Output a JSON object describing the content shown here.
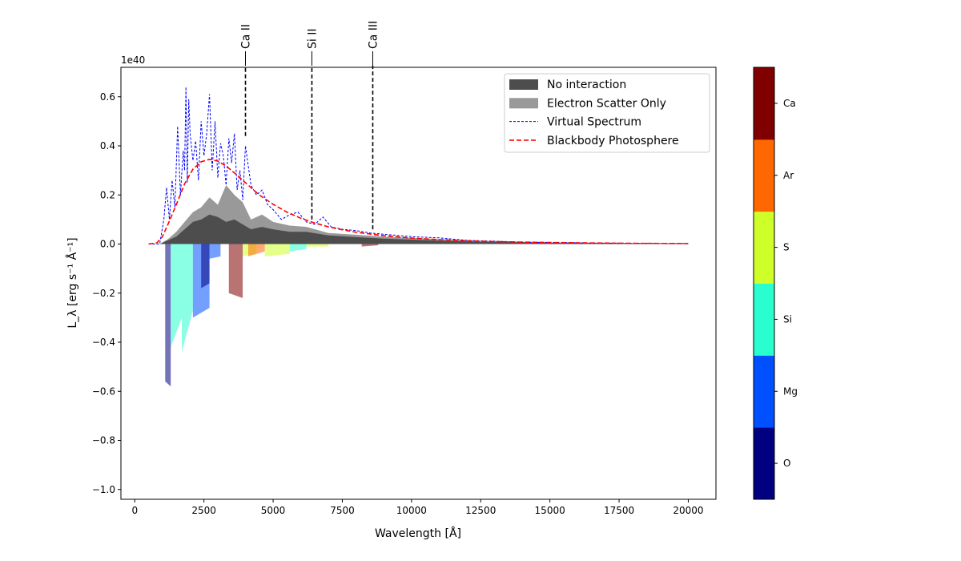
{
  "chart_data": {
    "type": "area",
    "xlabel": "Wavelength [Å]",
    "ylabel": "L_λ [erg s⁻¹ Å⁻¹]",
    "y_offset_label": "1e40",
    "xlim": [
      -500,
      21000
    ],
    "ylim": [
      -1.04,
      0.72
    ],
    "x_ticks": [
      0,
      2500,
      5000,
      7500,
      10000,
      12500,
      15000,
      17500,
      20000
    ],
    "x_tick_labels": [
      "0",
      "2500",
      "5000",
      "7500",
      "10000",
      "12500",
      "15000",
      "17500",
      "20000"
    ],
    "y_ticks": [
      -1.0,
      -0.8,
      -0.6,
      -0.4,
      -0.2,
      0.0,
      0.2,
      0.4,
      0.6
    ],
    "y_tick_labels": [
      "−1.0",
      "−0.8",
      "−0.6",
      "−0.4",
      "−0.2",
      "0.0",
      "0.2",
      "0.4",
      "0.6"
    ],
    "line_markers": [
      {
        "label": "Ca II",
        "x": 4000,
        "y_top": 0.44
      },
      {
        "label": "Si II",
        "x": 6400,
        "y_top": 0.1
      },
      {
        "label": "Ca III",
        "x": 8600,
        "y_top": 0.06
      }
    ],
    "legend": {
      "position": "upper right",
      "entries": [
        {
          "label": "No interaction",
          "style": "patch",
          "color": "#4d4d4d"
        },
        {
          "label": "Electron Scatter Only",
          "style": "patch",
          "color": "#999999"
        },
        {
          "label": "Virtual Spectrum",
          "style": "dashed-thin",
          "color": "#0000ff"
        },
        {
          "label": "Blackbody Photosphere",
          "style": "dashed-thick",
          "color": "#ff0000"
        }
      ]
    },
    "colorbar": {
      "elements": [
        "O",
        "Mg",
        "Si",
        "S",
        "Ar",
        "Ca"
      ],
      "colors": [
        "#000080",
        "#0050ff",
        "#29ffce",
        "#ceff29",
        "#ff6800",
        "#800000"
      ]
    },
    "series": [
      {
        "name": "Blackbody Photosphere",
        "x": [
          500,
          800,
          1000,
          1200,
          1500,
          1800,
          2100,
          2400,
          2700,
          3000,
          3300,
          3600,
          4000,
          4500,
          5000,
          5500,
          6000,
          6500,
          7000,
          7500,
          8000,
          9000,
          10000,
          11000,
          12000,
          13000,
          14000,
          16000,
          18000,
          20000
        ],
        "y": [
          0.0,
          0.005,
          0.03,
          0.08,
          0.16,
          0.245,
          0.305,
          0.335,
          0.345,
          0.338,
          0.318,
          0.29,
          0.25,
          0.2,
          0.162,
          0.13,
          0.105,
          0.086,
          0.07,
          0.058,
          0.048,
          0.034,
          0.024,
          0.018,
          0.013,
          0.01,
          0.008,
          0.005,
          0.003,
          0.002
        ]
      },
      {
        "name": "Virtual Spectrum",
        "x": [
          500,
          900,
          1050,
          1150,
          1250,
          1350,
          1450,
          1550,
          1650,
          1750,
          1800,
          1850,
          1900,
          1950,
          2000,
          2100,
          2200,
          2300,
          2400,
          2500,
          2600,
          2700,
          2800,
          2900,
          3000,
          3100,
          3200,
          3300,
          3400,
          3500,
          3600,
          3700,
          3800,
          3900,
          4000,
          4200,
          4400,
          4600,
          4800,
          5000,
          5300,
          5600,
          5900,
          6200,
          6500,
          6800,
          7100,
          7500,
          8000,
          8500,
          9000,
          9500,
          10000,
          11000,
          12000,
          14000,
          17000,
          20000
        ],
        "y": [
          0.0,
          0.0,
          0.1,
          0.23,
          0.1,
          0.26,
          0.15,
          0.48,
          0.2,
          0.38,
          0.3,
          0.64,
          0.25,
          0.59,
          0.45,
          0.34,
          0.42,
          0.26,
          0.5,
          0.36,
          0.45,
          0.61,
          0.3,
          0.5,
          0.27,
          0.41,
          0.36,
          0.24,
          0.43,
          0.33,
          0.45,
          0.22,
          0.3,
          0.18,
          0.4,
          0.24,
          0.2,
          0.22,
          0.16,
          0.14,
          0.1,
          0.12,
          0.13,
          0.09,
          0.08,
          0.11,
          0.07,
          0.06,
          0.055,
          0.045,
          0.04,
          0.035,
          0.03,
          0.025,
          0.015,
          0.008,
          0.004,
          0.002
        ]
      },
      {
        "name": "Electron Scatter Only",
        "x": [
          900,
          1200,
          1500,
          1800,
          2100,
          2400,
          2700,
          3000,
          3300,
          3600,
          3900,
          4200,
          4600,
          5000,
          5600,
          6200,
          7000,
          8000,
          9000,
          10000,
          11000,
          12500,
          15000,
          20000
        ],
        "y": [
          0.0,
          0.02,
          0.05,
          0.09,
          0.13,
          0.15,
          0.19,
          0.16,
          0.24,
          0.2,
          0.17,
          0.1,
          0.12,
          0.09,
          0.075,
          0.07,
          0.045,
          0.038,
          0.03,
          0.025,
          0.02,
          0.012,
          0.006,
          0.002
        ]
      },
      {
        "name": "No interaction",
        "x": [
          900,
          1200,
          1500,
          1800,
          2100,
          2400,
          2700,
          3000,
          3300,
          3600,
          3900,
          4200,
          4600,
          5000,
          5600,
          6200,
          7000,
          8000,
          9000,
          10000,
          11000,
          12500,
          15000,
          20000
        ],
        "y": [
          0.0,
          0.015,
          0.03,
          0.06,
          0.09,
          0.1,
          0.12,
          0.11,
          0.09,
          0.1,
          0.08,
          0.06,
          0.07,
          0.06,
          0.05,
          0.05,
          0.035,
          0.028,
          0.022,
          0.018,
          0.014,
          0.009,
          0.005,
          0.002
        ]
      }
    ],
    "absorption_bands": [
      {
        "element": "O",
        "x": [
          1100,
          1300
        ],
        "y": [
          -0.56,
          -0.58
        ]
      },
      {
        "element": "Si",
        "x": [
          1300,
          1700
        ],
        "y": [
          -0.42,
          -0.3
        ]
      },
      {
        "element": "Si",
        "x": [
          1700,
          2100
        ],
        "y": [
          -0.44,
          -0.27
        ]
      },
      {
        "element": "Mg",
        "x": [
          2100,
          2700
        ],
        "y": [
          -0.3,
          -0.26
        ]
      },
      {
        "element": "O",
        "x": [
          2400,
          2700
        ],
        "y": [
          -0.18,
          -0.16
        ]
      },
      {
        "element": "Mg",
        "x": [
          2700,
          3100
        ],
        "y": [
          -0.06,
          -0.05
        ]
      },
      {
        "element": "Ca",
        "x": [
          3400,
          3900
        ],
        "y": [
          -0.2,
          -0.22
        ]
      },
      {
        "element": "S",
        "x": [
          3900,
          4400
        ],
        "y": [
          -0.05,
          -0.04
        ]
      },
      {
        "element": "Ar",
        "x": [
          4100,
          4700
        ],
        "y": [
          -0.05,
          -0.03
        ]
      },
      {
        "element": "S",
        "x": [
          4700,
          5600
        ],
        "y": [
          -0.05,
          -0.04
        ]
      },
      {
        "element": "Si",
        "x": [
          5600,
          6200
        ],
        "y": [
          -0.03,
          -0.02
        ]
      },
      {
        "element": "S",
        "x": [
          6200,
          7000
        ],
        "y": [
          -0.01,
          -0.01
        ]
      },
      {
        "element": "Ca",
        "x": [
          8200,
          8800
        ],
        "y": [
          -0.01,
          -0.005
        ]
      }
    ]
  }
}
